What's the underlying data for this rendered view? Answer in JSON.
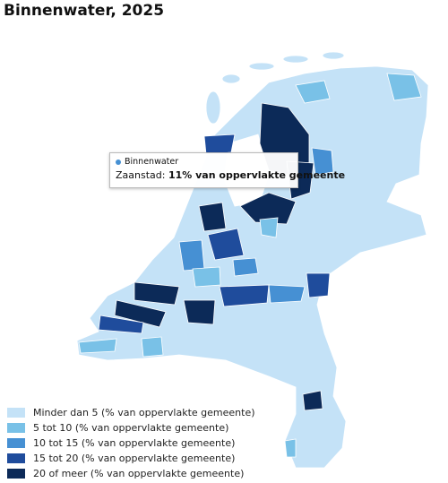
{
  "header": {
    "title": "Binnenwater, 2025"
  },
  "tooltip": {
    "series": "Binnenwater",
    "region": "Zaanstad:",
    "value": "11% van oppervlakte gemeente"
  },
  "legend": {
    "items": [
      {
        "label": "Minder dan 5 (% van oppervlakte gemeente)",
        "color": "#c4e2f7"
      },
      {
        "label": "5 tot 10 (% van oppervlakte gemeente)",
        "color": "#79c1e7"
      },
      {
        "label": "10 tot 15 (% van oppervlakte gemeente)",
        "color": "#4690d3"
      },
      {
        "label": "15 tot 20 (% van oppervlakte gemeente)",
        "color": "#1f4c9c"
      },
      {
        "label": "20 of meer (% van oppervlakte gemeente)",
        "color": "#0c2a58"
      }
    ]
  }
}
